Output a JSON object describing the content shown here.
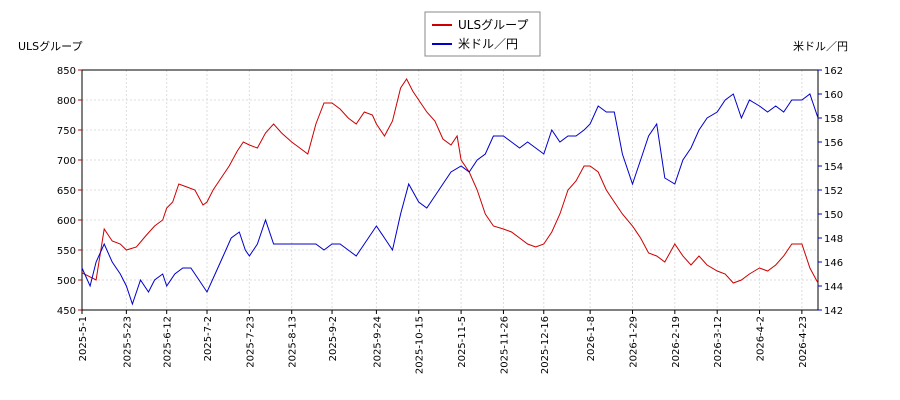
{
  "chart_data": {
    "type": "line",
    "title": "",
    "left_axis_label": "ULSグループ",
    "right_axis_label": "米ドル／円",
    "left_ylim": [
      450,
      850
    ],
    "left_yticks": [
      450,
      500,
      550,
      600,
      650,
      700,
      750,
      800,
      850
    ],
    "right_ylim": [
      142,
      162
    ],
    "right_yticks": [
      142,
      144,
      146,
      148,
      150,
      152,
      154,
      156,
      158,
      160,
      162
    ],
    "x_range": [
      "2025-05-01",
      "2026-05-01"
    ],
    "x_ticks": [
      "2025-5-1",
      "2025-5-23",
      "2025-6-12",
      "2025-7-2",
      "2025-7-23",
      "2025-8-13",
      "2025-9-2",
      "2025-9-24",
      "2025-10-15",
      "2025-11-5",
      "2025-11-26",
      "2025-12-16",
      "2026-1-8",
      "2026-1-29",
      "2026-2-19",
      "2026-3-12",
      "2026-4-2",
      "2026-4-23"
    ],
    "grid": true,
    "legend_position": "top-center",
    "series": [
      {
        "name": "ULSグループ",
        "axis": "left",
        "color": "#cc0000",
        "points": [
          [
            "2025-05-01",
            512
          ],
          [
            "2025-05-08",
            500
          ],
          [
            "2025-05-12",
            585
          ],
          [
            "2025-05-16",
            565
          ],
          [
            "2025-05-20",
            560
          ],
          [
            "2025-05-23",
            550
          ],
          [
            "2025-05-28",
            555
          ],
          [
            "2025-06-02",
            575
          ],
          [
            "2025-06-06",
            590
          ],
          [
            "2025-06-10",
            600
          ],
          [
            "2025-06-12",
            620
          ],
          [
            "2025-06-15",
            630
          ],
          [
            "2025-06-18",
            660
          ],
          [
            "2025-06-22",
            655
          ],
          [
            "2025-06-26",
            650
          ],
          [
            "2025-06-30",
            625
          ],
          [
            "2025-07-02",
            630
          ],
          [
            "2025-07-05",
            650
          ],
          [
            "2025-07-09",
            670
          ],
          [
            "2025-07-13",
            690
          ],
          [
            "2025-07-17",
            715
          ],
          [
            "2025-07-20",
            730
          ],
          [
            "2025-07-23",
            725
          ],
          [
            "2025-07-27",
            720
          ],
          [
            "2025-07-31",
            745
          ],
          [
            "2025-08-04",
            760
          ],
          [
            "2025-08-08",
            745
          ],
          [
            "2025-08-13",
            730
          ],
          [
            "2025-08-17",
            720
          ],
          [
            "2025-08-21",
            710
          ],
          [
            "2025-08-25",
            760
          ],
          [
            "2025-08-29",
            795
          ],
          [
            "2025-09-02",
            795
          ],
          [
            "2025-09-06",
            785
          ],
          [
            "2025-09-10",
            770
          ],
          [
            "2025-09-14",
            760
          ],
          [
            "2025-09-18",
            780
          ],
          [
            "2025-09-22",
            775
          ],
          [
            "2025-09-24",
            760
          ],
          [
            "2025-09-28",
            740
          ],
          [
            "2025-10-02",
            765
          ],
          [
            "2025-10-06",
            820
          ],
          [
            "2025-10-09",
            835
          ],
          [
            "2025-10-12",
            815
          ],
          [
            "2025-10-15",
            800
          ],
          [
            "2025-10-19",
            780
          ],
          [
            "2025-10-23",
            765
          ],
          [
            "2025-10-27",
            735
          ],
          [
            "2025-10-31",
            725
          ],
          [
            "2025-11-03",
            740
          ],
          [
            "2025-11-05",
            700
          ],
          [
            "2025-11-09",
            680
          ],
          [
            "2025-11-13",
            650
          ],
          [
            "2025-11-17",
            610
          ],
          [
            "2025-11-21",
            590
          ],
          [
            "2025-11-26",
            585
          ],
          [
            "2025-11-30",
            580
          ],
          [
            "2025-12-04",
            570
          ],
          [
            "2025-12-08",
            560
          ],
          [
            "2025-12-12",
            555
          ],
          [
            "2025-12-16",
            560
          ],
          [
            "2025-12-20",
            580
          ],
          [
            "2025-12-24",
            610
          ],
          [
            "2025-12-28",
            650
          ],
          [
            "2026-01-01",
            665
          ],
          [
            "2026-01-05",
            690
          ],
          [
            "2026-01-08",
            690
          ],
          [
            "2026-01-12",
            680
          ],
          [
            "2026-01-16",
            650
          ],
          [
            "2026-01-20",
            630
          ],
          [
            "2026-01-24",
            610
          ],
          [
            "2026-01-29",
            590
          ],
          [
            "2026-02-02",
            570
          ],
          [
            "2026-02-06",
            545
          ],
          [
            "2026-02-10",
            540
          ],
          [
            "2026-02-14",
            530
          ],
          [
            "2026-02-19",
            560
          ],
          [
            "2026-02-23",
            540
          ],
          [
            "2026-02-27",
            525
          ],
          [
            "2026-03-03",
            540
          ],
          [
            "2026-03-07",
            525
          ],
          [
            "2026-03-12",
            515
          ],
          [
            "2026-03-16",
            510
          ],
          [
            "2026-03-20",
            495
          ],
          [
            "2026-03-24",
            500
          ],
          [
            "2026-03-28",
            510
          ],
          [
            "2026-04-02",
            520
          ],
          [
            "2026-04-06",
            515
          ],
          [
            "2026-04-10",
            525
          ],
          [
            "2026-04-14",
            540
          ],
          [
            "2026-04-18",
            560
          ],
          [
            "2026-04-23",
            560
          ],
          [
            "2026-04-27",
            520
          ],
          [
            "2026-05-01",
            495
          ]
        ]
      },
      {
        "name": "米ドル／円",
        "axis": "right",
        "color": "#0000cc",
        "points": [
          [
            "2025-05-01",
            145.5
          ],
          [
            "2025-05-05",
            144.0
          ],
          [
            "2025-05-08",
            146.0
          ],
          [
            "2025-05-12",
            147.5
          ],
          [
            "2025-05-16",
            146.0
          ],
          [
            "2025-05-20",
            145.0
          ],
          [
            "2025-05-23",
            144.0
          ],
          [
            "2025-05-26",
            142.5
          ],
          [
            "2025-05-30",
            144.5
          ],
          [
            "2025-06-03",
            143.5
          ],
          [
            "2025-06-06",
            144.5
          ],
          [
            "2025-06-10",
            145.0
          ],
          [
            "2025-06-12",
            144.0
          ],
          [
            "2025-06-16",
            145.0
          ],
          [
            "2025-06-20",
            145.5
          ],
          [
            "2025-06-24",
            145.5
          ],
          [
            "2025-06-28",
            144.5
          ],
          [
            "2025-07-02",
            143.5
          ],
          [
            "2025-07-06",
            145.0
          ],
          [
            "2025-07-10",
            146.5
          ],
          [
            "2025-07-14",
            148.0
          ],
          [
            "2025-07-18",
            148.5
          ],
          [
            "2025-07-21",
            147.0
          ],
          [
            "2025-07-23",
            146.5
          ],
          [
            "2025-07-27",
            147.5
          ],
          [
            "2025-07-31",
            149.5
          ],
          [
            "2025-08-04",
            147.5
          ],
          [
            "2025-08-08",
            147.5
          ],
          [
            "2025-08-13",
            147.5
          ],
          [
            "2025-08-17",
            147.5
          ],
          [
            "2025-08-21",
            147.5
          ],
          [
            "2025-08-25",
            147.5
          ],
          [
            "2025-08-29",
            147.0
          ],
          [
            "2025-09-02",
            147.5
          ],
          [
            "2025-09-06",
            147.5
          ],
          [
            "2025-09-10",
            147.0
          ],
          [
            "2025-09-14",
            146.5
          ],
          [
            "2025-09-18",
            147.5
          ],
          [
            "2025-09-22",
            148.5
          ],
          [
            "2025-09-24",
            149.0
          ],
          [
            "2025-09-28",
            148.0
          ],
          [
            "2025-10-02",
            147.0
          ],
          [
            "2025-10-06",
            150.0
          ],
          [
            "2025-10-10",
            152.5
          ],
          [
            "2025-10-15",
            151.0
          ],
          [
            "2025-10-19",
            150.5
          ],
          [
            "2025-10-23",
            151.5
          ],
          [
            "2025-10-27",
            152.5
          ],
          [
            "2025-10-31",
            153.5
          ],
          [
            "2025-11-05",
            154.0
          ],
          [
            "2025-11-09",
            153.5
          ],
          [
            "2025-11-13",
            154.5
          ],
          [
            "2025-11-17",
            155.0
          ],
          [
            "2025-11-21",
            156.5
          ],
          [
            "2025-11-26",
            156.5
          ],
          [
            "2025-11-30",
            156.0
          ],
          [
            "2025-12-04",
            155.5
          ],
          [
            "2025-12-08",
            156.0
          ],
          [
            "2025-12-12",
            155.5
          ],
          [
            "2025-12-16",
            155.0
          ],
          [
            "2025-12-20",
            157.0
          ],
          [
            "2025-12-24",
            156.0
          ],
          [
            "2025-12-28",
            156.5
          ],
          [
            "2026-01-01",
            156.5
          ],
          [
            "2026-01-05",
            157.0
          ],
          [
            "2026-01-08",
            157.5
          ],
          [
            "2026-01-12",
            159.0
          ],
          [
            "2026-01-16",
            158.5
          ],
          [
            "2026-01-20",
            158.5
          ],
          [
            "2026-01-24",
            155.0
          ],
          [
            "2026-01-29",
            152.5
          ],
          [
            "2026-02-02",
            154.5
          ],
          [
            "2026-02-06",
            156.5
          ],
          [
            "2026-02-10",
            157.5
          ],
          [
            "2026-02-14",
            153.0
          ],
          [
            "2026-02-19",
            152.5
          ],
          [
            "2026-02-23",
            154.5
          ],
          [
            "2026-02-27",
            155.5
          ],
          [
            "2026-03-03",
            157.0
          ],
          [
            "2026-03-07",
            158.0
          ],
          [
            "2026-03-12",
            158.5
          ],
          [
            "2026-03-16",
            159.5
          ],
          [
            "2026-03-20",
            160.0
          ],
          [
            "2026-03-24",
            158.0
          ],
          [
            "2026-03-28",
            159.5
          ],
          [
            "2026-04-02",
            159.0
          ],
          [
            "2026-04-06",
            158.5
          ],
          [
            "2026-04-10",
            159.0
          ],
          [
            "2026-04-14",
            158.5
          ],
          [
            "2026-04-18",
            159.5
          ],
          [
            "2026-04-23",
            159.5
          ],
          [
            "2026-04-27",
            160.0
          ],
          [
            "2026-05-01",
            158.0
          ]
        ]
      }
    ]
  }
}
